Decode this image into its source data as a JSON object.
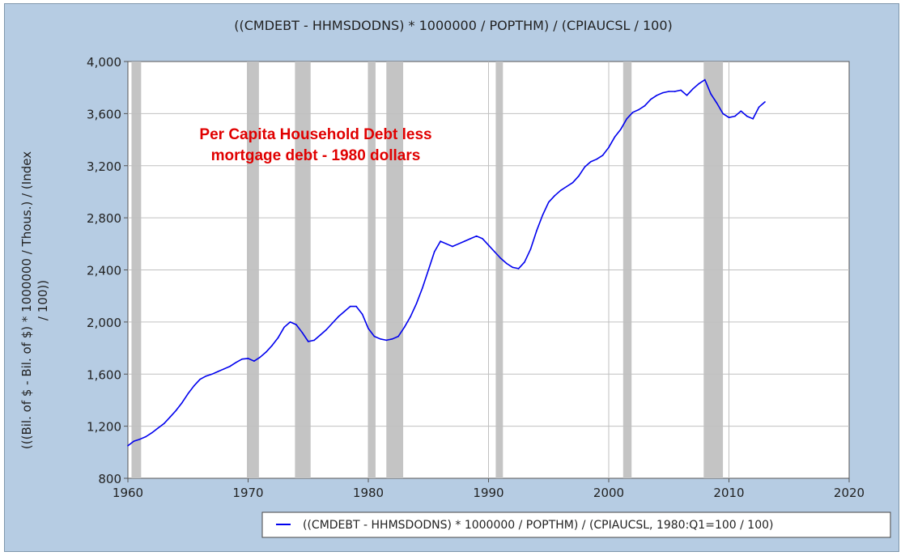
{
  "chart_data": {
    "type": "line",
    "title": "((CMDEBT - HHMSDODNS) * 1000000 / POPTHM) / (CPIAUCSL / 100)",
    "ylabel_lines": [
      "(((Bil. of $ - Bil. of $) * 1000000 / Thous.) / (Index",
      "/ 100))"
    ],
    "xlabel": "",
    "annotation": [
      "Per Capita Household Debt less",
      "mortgage debt - 1980 dollars"
    ],
    "legend": "((CMDEBT - HHMSDODNS) * 1000000 / POPTHM) / (CPIAUCSL, 1980:Q1=100 / 100)",
    "legend_position": "bottom-right",
    "xlim": [
      1960,
      2020
    ],
    "ylim": [
      800,
      4000
    ],
    "x_ticks": [
      1960,
      1970,
      1980,
      1990,
      2000,
      2010,
      2020
    ],
    "y_ticks": [
      800,
      1200,
      1600,
      2000,
      2400,
      2800,
      3200,
      3600,
      4000
    ],
    "y_tick_labels": [
      "800",
      "1,200",
      "1,600",
      "2,000",
      "2,400",
      "2,800",
      "3,200",
      "3,600",
      "4,000"
    ],
    "grid": true,
    "recessions": [
      [
        1960.3,
        1961.1
      ],
      [
        1969.9,
        1970.9
      ],
      [
        1973.9,
        1975.2
      ],
      [
        1980.0,
        1980.6
      ],
      [
        1981.5,
        1982.9
      ],
      [
        1990.6,
        1991.2
      ],
      [
        2001.2,
        2001.9
      ],
      [
        2007.9,
        2009.5
      ]
    ],
    "series": [
      {
        "name": "((CMDEBT - HHMSDODNS) * 1000000 / POPTHM) / (CPIAUCSL, 1980:Q1=100 / 100)",
        "color": "#0000ee",
        "x": [
          1960.0,
          1960.5,
          1961.0,
          1961.5,
          1962.0,
          1962.5,
          1963.0,
          1963.5,
          1964.0,
          1964.5,
          1965.0,
          1965.5,
          1966.0,
          1966.5,
          1967.0,
          1967.5,
          1968.0,
          1968.5,
          1969.0,
          1969.5,
          1970.0,
          1970.5,
          1971.0,
          1971.5,
          1972.0,
          1972.5,
          1973.0,
          1973.5,
          1974.0,
          1974.5,
          1975.0,
          1975.5,
          1976.0,
          1976.5,
          1977.0,
          1977.5,
          1978.0,
          1978.5,
          1979.0,
          1979.5,
          1980.0,
          1980.5,
          1981.0,
          1981.5,
          1982.0,
          1982.5,
          1983.0,
          1983.5,
          1984.0,
          1984.5,
          1985.0,
          1985.5,
          1986.0,
          1986.5,
          1987.0,
          1987.5,
          1988.0,
          1988.5,
          1989.0,
          1989.5,
          1990.0,
          1990.5,
          1991.0,
          1991.5,
          1992.0,
          1992.5,
          1993.0,
          1993.5,
          1994.0,
          1994.5,
          1995.0,
          1995.5,
          1996.0,
          1996.5,
          1997.0,
          1997.5,
          1998.0,
          1998.5,
          1999.0,
          1999.5,
          2000.0,
          2000.5,
          2001.0,
          2001.5,
          2002.0,
          2002.5,
          2003.0,
          2003.5,
          2004.0,
          2004.5,
          2005.0,
          2005.5,
          2006.0,
          2006.5,
          2007.0,
          2007.5,
          2008.0,
          2008.5,
          2009.0,
          2009.5,
          2010.0,
          2010.5,
          2011.0,
          2011.5,
          2012.0,
          2012.5,
          2013.0
        ],
        "y": [
          1050,
          1085,
          1100,
          1120,
          1150,
          1185,
          1220,
          1270,
          1320,
          1380,
          1450,
          1510,
          1560,
          1585,
          1600,
          1620,
          1640,
          1660,
          1690,
          1715,
          1720,
          1700,
          1730,
          1770,
          1820,
          1880,
          1960,
          2000,
          1980,
          1920,
          1850,
          1860,
          1900,
          1940,
          1990,
          2040,
          2080,
          2120,
          2120,
          2060,
          1950,
          1890,
          1870,
          1860,
          1870,
          1890,
          1960,
          2040,
          2140,
          2260,
          2400,
          2540,
          2620,
          2600,
          2580,
          2600,
          2620,
          2640,
          2660,
          2640,
          2590,
          2540,
          2490,
          2450,
          2420,
          2410,
          2460,
          2560,
          2700,
          2820,
          2920,
          2970,
          3010,
          3040,
          3070,
          3120,
          3190,
          3230,
          3250,
          3280,
          3340,
          3420,
          3480,
          3560,
          3610,
          3630,
          3660,
          3710,
          3740,
          3760,
          3770,
          3770,
          3780,
          3740,
          3790,
          3830,
          3860,
          3750,
          3680,
          3600,
          3570,
          3580,
          3620,
          3580,
          3560,
          3650,
          3690
        ]
      }
    ]
  }
}
